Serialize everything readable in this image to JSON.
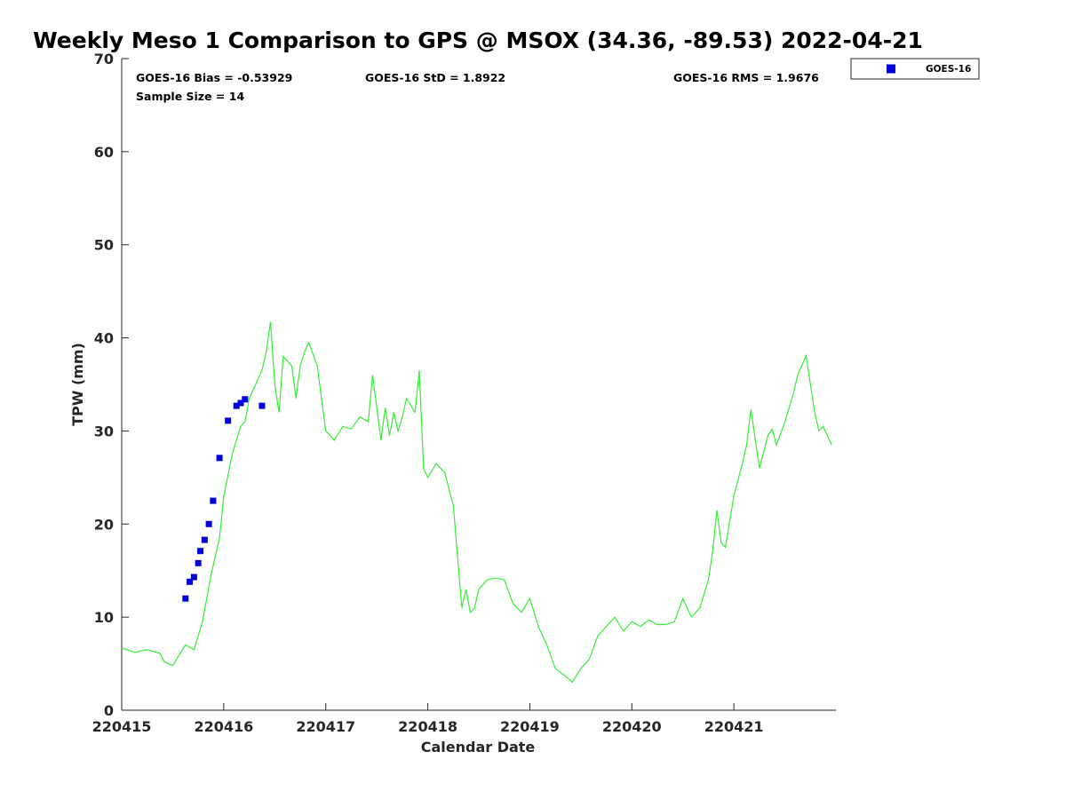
{
  "chart_data": {
    "type": "scatter",
    "title": "Weekly Meso 1 Comparison to GPS @ MSOX (34.36, -89.53) 2022-04-21",
    "xlabel": "Calendar Date",
    "ylabel": "TPW (mm)",
    "xlim": [
      "2022-04-15",
      "2022-04-22"
    ],
    "ylim": [
      0,
      70
    ],
    "x_tick_labels": [
      "220415",
      "220416",
      "220417",
      "220418",
      "220419",
      "220420",
      "220421"
    ],
    "y_tick_labels": [
      "0",
      "10",
      "20",
      "30",
      "40",
      "50",
      "60",
      "70"
    ],
    "grid": false,
    "legend_position": "top-right, outside axes",
    "stats": {
      "bias": "GOES-16 Bias = -0.53929",
      "std": "GOES-16 StD = 1.8922",
      "rms": "GOES-16 RMS = 1.9676",
      "sample": "Sample Size = 14"
    },
    "series": [
      {
        "name": "GOES-16",
        "kind": "scatter",
        "marker": "square",
        "color": "#0000dd",
        "x": [
          "2022-04-15 15:00",
          "2022-04-15 16:00",
          "2022-04-15 17:00",
          "2022-04-15 18:00",
          "2022-04-15 18:30",
          "2022-04-15 19:30",
          "2022-04-15 20:30",
          "2022-04-15 21:30",
          "2022-04-15 23:00",
          "2022-04-16 01:00",
          "2022-04-16 03:00",
          "2022-04-16 04:00",
          "2022-04-16 05:00",
          "2022-04-16 09:00"
        ],
        "y": [
          12.0,
          13.8,
          14.3,
          15.8,
          17.1,
          18.3,
          20.0,
          22.5,
          27.1,
          31.1,
          32.7,
          33.0,
          33.4,
          32.7
        ]
      },
      {
        "kind": "line",
        "color": "#33ee33",
        "x": [
          "2022-04-15 00:00",
          "2022-04-15 03:00",
          "2022-04-15 06:00",
          "2022-04-15 09:00",
          "2022-04-15 10:00",
          "2022-04-15 12:00",
          "2022-04-15 14:00",
          "2022-04-15 15:00",
          "2022-04-15 17:00",
          "2022-04-15 19:00",
          "2022-04-15 21:00",
          "2022-04-15 23:00",
          "2022-04-16 00:00",
          "2022-04-16 02:00",
          "2022-04-16 04:00",
          "2022-04-16 05:00",
          "2022-04-16 06:00",
          "2022-04-16 07:00",
          "2022-04-16 08:00",
          "2022-04-16 09:00",
          "2022-04-16 10:00",
          "2022-04-16 11:00",
          "2022-04-16 12:00",
          "2022-04-16 13:00",
          "2022-04-16 14:00",
          "2022-04-16 16:00",
          "2022-04-16 17:00",
          "2022-04-16 18:00",
          "2022-04-16 19:00",
          "2022-04-16 20:00",
          "2022-04-16 22:00",
          "2022-04-17 00:00",
          "2022-04-17 02:00",
          "2022-04-17 04:00",
          "2022-04-17 06:00",
          "2022-04-17 08:00",
          "2022-04-17 10:00",
          "2022-04-17 11:00",
          "2022-04-17 13:00",
          "2022-04-17 14:00",
          "2022-04-17 15:00",
          "2022-04-17 16:00",
          "2022-04-17 17:00",
          "2022-04-17 18:00",
          "2022-04-17 19:00",
          "2022-04-17 21:00",
          "2022-04-17 22:00",
          "2022-04-17 23:00",
          "2022-04-18 00:00",
          "2022-04-18 02:00",
          "2022-04-18 04:00",
          "2022-04-18 06:00",
          "2022-04-18 08:00",
          "2022-04-18 09:00",
          "2022-04-18 10:00",
          "2022-04-18 11:00",
          "2022-04-18 12:00",
          "2022-04-18 14:00",
          "2022-04-18 16:00",
          "2022-04-18 18:00",
          "2022-04-18 20:00",
          "2022-04-18 22:00",
          "2022-04-19 00:00",
          "2022-04-19 02:00",
          "2022-04-19 04:00",
          "2022-04-19 06:00",
          "2022-04-19 08:00",
          "2022-04-19 10:00",
          "2022-04-19 12:00",
          "2022-04-19 14:00",
          "2022-04-19 16:00",
          "2022-04-19 18:00",
          "2022-04-19 20:00",
          "2022-04-19 22:00",
          "2022-04-20 00:00",
          "2022-04-20 02:00",
          "2022-04-20 04:00",
          "2022-04-20 06:00",
          "2022-04-20 08:00",
          "2022-04-20 10:00",
          "2022-04-20 12:00",
          "2022-04-20 14:00",
          "2022-04-20 16:00",
          "2022-04-20 18:00",
          "2022-04-20 19:00",
          "2022-04-20 20:00",
          "2022-04-20 21:00",
          "2022-04-20 22:00",
          "2022-04-21 00:00",
          "2022-04-21 02:00",
          "2022-04-21 03:00",
          "2022-04-21 04:00",
          "2022-04-21 06:00",
          "2022-04-21 08:00",
          "2022-04-21 09:00",
          "2022-04-21 10:00",
          "2022-04-21 12:00",
          "2022-04-21 14:00",
          "2022-04-21 15:00",
          "2022-04-21 17:00",
          "2022-04-21 18:00",
          "2022-04-21 19:00",
          "2022-04-21 20:00",
          "2022-04-21 21:00",
          "2022-04-21 22:00",
          "2022-04-21 23:00"
        ],
        "y": [
          6.7,
          6.2,
          6.5,
          6.1,
          5.2,
          4.8,
          6.3,
          7.0,
          6.5,
          9.5,
          14.5,
          18.5,
          23.0,
          27.5,
          30.5,
          31.0,
          33.5,
          34.5,
          35.5,
          36.5,
          38.5,
          41.7,
          35.0,
          32.0,
          38.0,
          37.0,
          33.5,
          37.0,
          38.5,
          39.5,
          37.0,
          30.0,
          29.0,
          30.5,
          30.2,
          31.5,
          31.0,
          36.0,
          29.0,
          32.5,
          29.5,
          32.0,
          30.0,
          31.5,
          33.5,
          32.0,
          36.5,
          26.0,
          25.0,
          26.5,
          25.5,
          22.0,
          11.0,
          13.0,
          10.5,
          11.0,
          13.0,
          14.0,
          14.2,
          14.0,
          11.5,
          10.5,
          12.0,
          9.0,
          7.0,
          4.5,
          3.8,
          3.0,
          4.5,
          5.5,
          8.0,
          9.0,
          10.0,
          8.5,
          9.5,
          9.0,
          9.7,
          9.2,
          9.2,
          9.5,
          12.0,
          10.0,
          11.0,
          14.0,
          17.0,
          21.5,
          18.0,
          17.5,
          23.0,
          26.5,
          28.5,
          32.3,
          26.0,
          29.5,
          30.2,
          28.5,
          31.0,
          34.0,
          36.0,
          38.1,
          35.0,
          32.0,
          30.0,
          30.5,
          29.5,
          28.5
        ]
      }
    ]
  }
}
